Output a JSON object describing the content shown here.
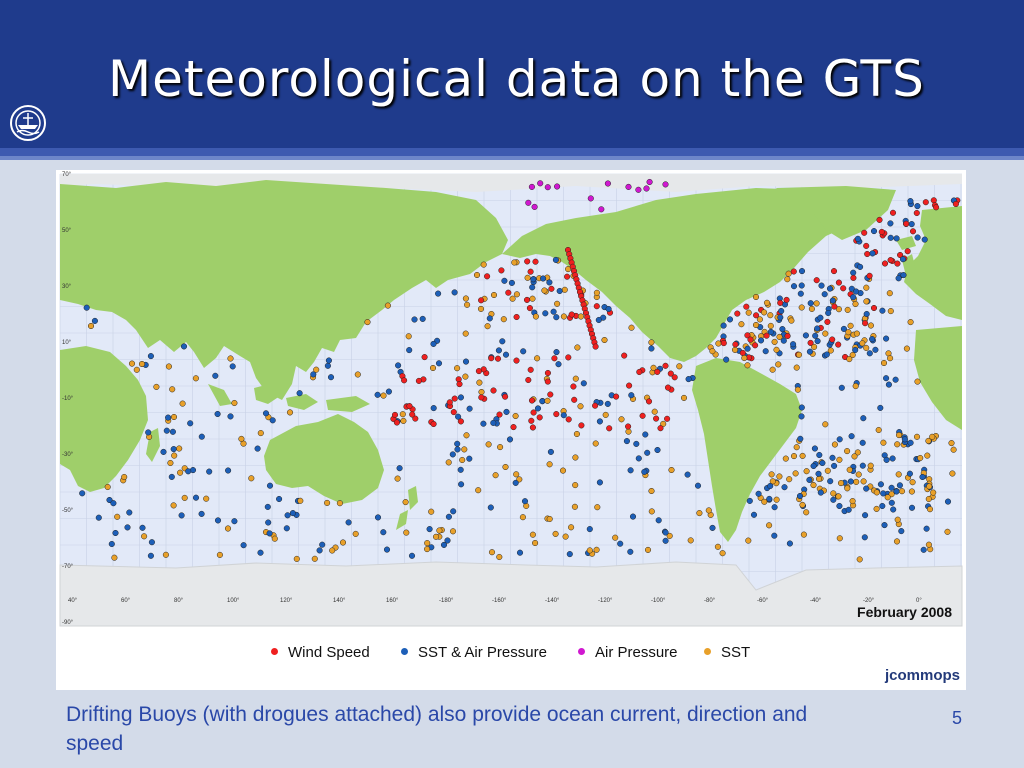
{
  "slide": {
    "title": "Meteorological data on the GTS",
    "caption": "Drifting Buoys (with drogues attached) also provide ocean current, direction and speed",
    "page_number": "5"
  },
  "map": {
    "date_label": "February 2008",
    "lat_labels": [
      "70°",
      "50°",
      "30°",
      "10°",
      "-10°",
      "-30°",
      "-50°",
      "-70°",
      "-90°"
    ],
    "lon_labels": [
      "40°",
      "60°",
      "80°",
      "100°",
      "120°",
      "140°",
      "160°",
      "-180°",
      "-160°",
      "-140°",
      "-120°",
      "-100°",
      "-80°",
      "-60°",
      "-40°",
      "-20°",
      "0°"
    ],
    "colors": {
      "ocean": "#e2e9f8",
      "land": "#9fcf6a",
      "ice": "#e6e8ea",
      "wind": "#ef2020",
      "sst_air": "#1d5fb8",
      "air": "#d018d0",
      "sst": "#e8a02a"
    }
  },
  "legend": {
    "items": [
      {
        "label": "Wind Speed",
        "color": "#ef2020"
      },
      {
        "label": "SST & Air Pressure",
        "color": "#1d5fb8"
      },
      {
        "label": "Air Pressure",
        "color": "#d018d0"
      },
      {
        "label": "SST",
        "color": "#e8a02a"
      }
    ]
  },
  "brand": {
    "name": "jcommops"
  }
}
